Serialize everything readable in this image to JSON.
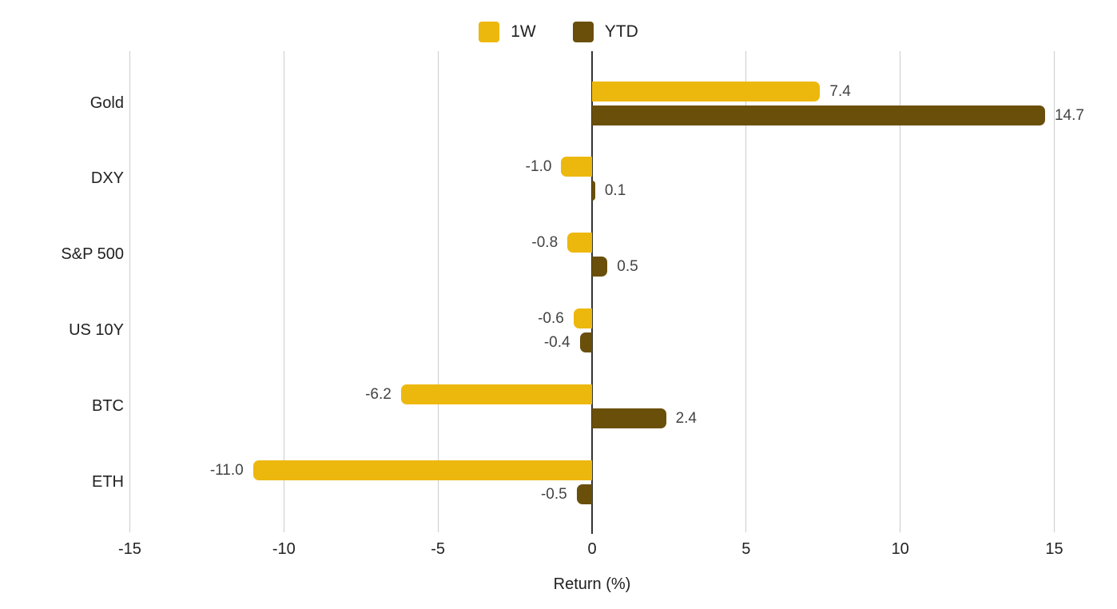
{
  "chart_data": {
    "type": "bar",
    "orientation": "horizontal",
    "title": "",
    "xlabel": "Return (%)",
    "ylabel": "",
    "categories": [
      "Gold",
      "DXY",
      "S&P 500",
      "US 10Y",
      "BTC",
      "ETH"
    ],
    "series": [
      {
        "name": "1W",
        "color": "#EDB80E",
        "values": [
          7.4,
          -1.0,
          -0.8,
          -0.6,
          -6.2,
          -11.0
        ]
      },
      {
        "name": "YTD",
        "color": "#6A4F0B",
        "values": [
          14.7,
          0.1,
          0.5,
          -0.4,
          2.4,
          -0.5
        ]
      }
    ],
    "xticks": [
      -15,
      -10,
      -5,
      0,
      5,
      10,
      15
    ],
    "xlim": [
      -15,
      15
    ],
    "grid": true,
    "legend_position": "top",
    "value_label_format": "one-decimal"
  },
  "colors": {
    "background": "#ffffff",
    "gridline": "#cccccc",
    "zero_axis": "#333333",
    "text": "#212121",
    "value_label_text": "#434343",
    "series_1w": "#EDB80E",
    "series_ytd": "#6A4F0B"
  }
}
